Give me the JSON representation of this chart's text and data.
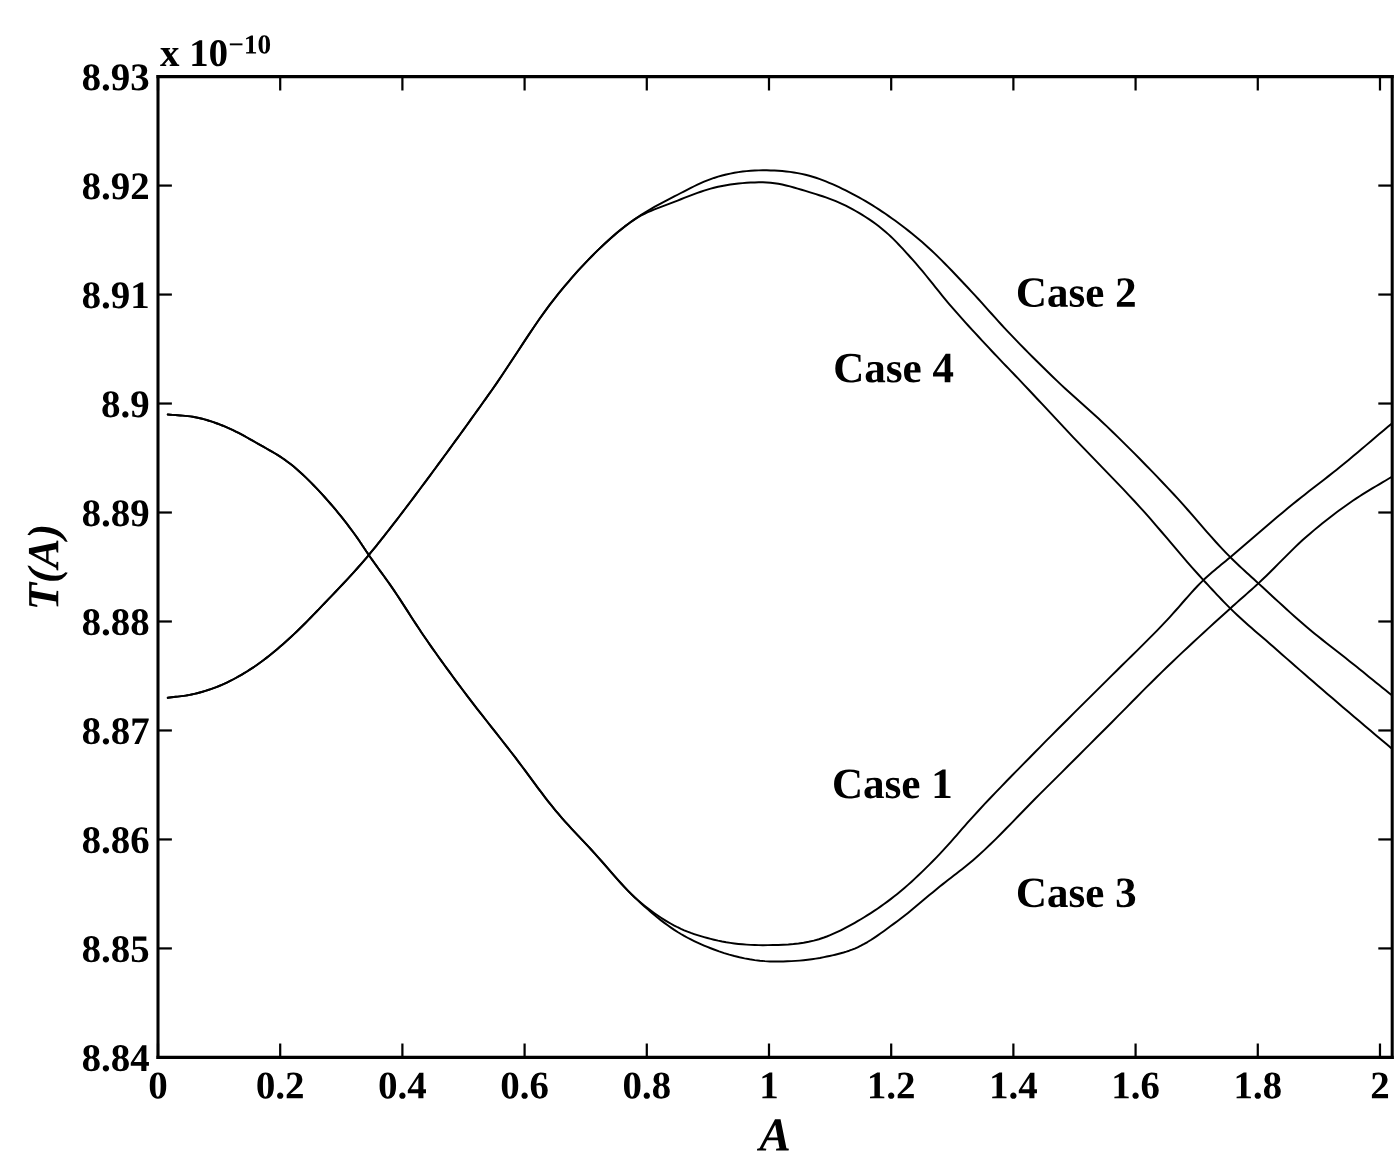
{
  "chart_data": {
    "type": "line",
    "xlabel": "A",
    "ylabel": "T(A)",
    "annotations": [
      "x 10$^{−10}$"
    ],
    "xlim": [
      0,
      2.02
    ],
    "xticks": [
      0,
      0.2,
      0.4,
      0.6,
      0.8,
      1,
      1.2,
      1.4,
      1.6,
      1.8,
      2
    ],
    "ylim": [
      8.84,
      8.93
    ],
    "yticks": [
      8.84,
      8.85,
      8.86,
      8.87,
      8.88,
      8.89,
      8.9,
      8.91,
      8.92,
      8.93
    ],
    "series": [
      {
        "name": "Case 1",
        "color": "#000000",
        "x": [
          0.016,
          0.065,
          0.109,
          0.164,
          0.218,
          0.273,
          0.327,
          0.345,
          0.382,
          0.436,
          0.491,
          0.585,
          0.65,
          0.715,
          0.78,
          0.845,
          0.91,
          0.99,
          1.09,
          1.145,
          1.21,
          1.28,
          1.334,
          1.444,
          1.553,
          1.651,
          1.711,
          1.755,
          1.858,
          1.935,
          2.02
        ],
        "values": [
          8.899,
          8.8987,
          8.8979,
          8.8963,
          8.8944,
          8.8914,
          8.8876,
          8.8861,
          8.8832,
          8.8786,
          8.8743,
          8.8675,
          8.8627,
          8.8587,
          8.8547,
          8.8521,
          8.8508,
          8.8503,
          8.851,
          8.8525,
          8.855,
          8.8587,
          8.8621,
          8.8685,
          8.8746,
          8.8801,
          8.8838,
          8.8859,
          8.8908,
          8.8942,
          8.8982
        ]
      },
      {
        "name": "Case 2",
        "color": "#000000",
        "x": [
          0.016,
          0.055,
          0.109,
          0.164,
          0.218,
          0.273,
          0.345,
          0.382,
          0.436,
          0.491,
          0.546,
          0.65,
          0.715,
          0.78,
          0.845,
          0.91,
          0.99,
          1.066,
          1.131,
          1.196,
          1.261,
          1.326,
          1.391,
          1.471,
          1.553,
          1.662,
          1.755,
          1.801,
          1.88,
          1.956,
          2.02
        ],
        "values": [
          8.873,
          8.8733,
          8.8743,
          8.8761,
          8.8786,
          8.8817,
          8.8861,
          8.8887,
          8.8927,
          8.8969,
          8.9012,
          8.9097,
          8.9138,
          8.9169,
          8.919,
          8.9207,
          8.9214,
          8.9209,
          8.9194,
          8.9172,
          8.9143,
          8.9106,
          8.9066,
          8.9021,
          8.8979,
          8.8917,
          8.8859,
          8.8835,
          8.8795,
          8.8761,
          8.8732
        ]
      },
      {
        "name": "Case 3",
        "color": "#000000",
        "x": [
          0.016,
          0.065,
          0.109,
          0.164,
          0.218,
          0.273,
          0.327,
          0.345,
          0.382,
          0.436,
          0.491,
          0.585,
          0.65,
          0.715,
          0.78,
          0.845,
          0.91,
          1.01,
          1.09,
          1.145,
          1.21,
          1.28,
          1.334,
          1.444,
          1.553,
          1.651,
          1.755,
          1.801,
          1.88,
          1.956,
          2.02
        ],
        "values": [
          8.899,
          8.8987,
          8.8979,
          8.8963,
          8.8944,
          8.8914,
          8.8876,
          8.8861,
          8.8832,
          8.8786,
          8.8743,
          8.8675,
          8.8627,
          8.8587,
          8.8547,
          8.8517,
          8.8499,
          8.8488,
          8.8492,
          8.8501,
          8.8525,
          8.8557,
          8.8581,
          8.8642,
          8.8703,
          8.8758,
          8.8812,
          8.8835,
          8.8878,
          8.8911,
          8.8933
        ]
      },
      {
        "name": "Case 4",
        "color": "#000000",
        "x": [
          0.016,
          0.055,
          0.109,
          0.164,
          0.218,
          0.273,
          0.345,
          0.382,
          0.436,
          0.491,
          0.546,
          0.65,
          0.715,
          0.78,
          0.845,
          0.91,
          0.99,
          1.066,
          1.131,
          1.196,
          1.235,
          1.3,
          1.365,
          1.411,
          1.498,
          1.607,
          1.711,
          1.755,
          1.825,
          1.913,
          2.02
        ],
        "values": [
          8.873,
          8.8733,
          8.8743,
          8.8761,
          8.8786,
          8.8817,
          8.8861,
          8.8887,
          8.8927,
          8.8969,
          8.9012,
          8.9097,
          8.9138,
          8.9169,
          8.9185,
          8.9198,
          8.9203,
          8.9194,
          8.918,
          8.9155,
          8.9132,
          8.9088,
          8.9048,
          8.9021,
          8.8969,
          8.8905,
          8.8838,
          8.8812,
          8.8777,
          8.8734,
          8.8683
        ]
      }
    ]
  }
}
